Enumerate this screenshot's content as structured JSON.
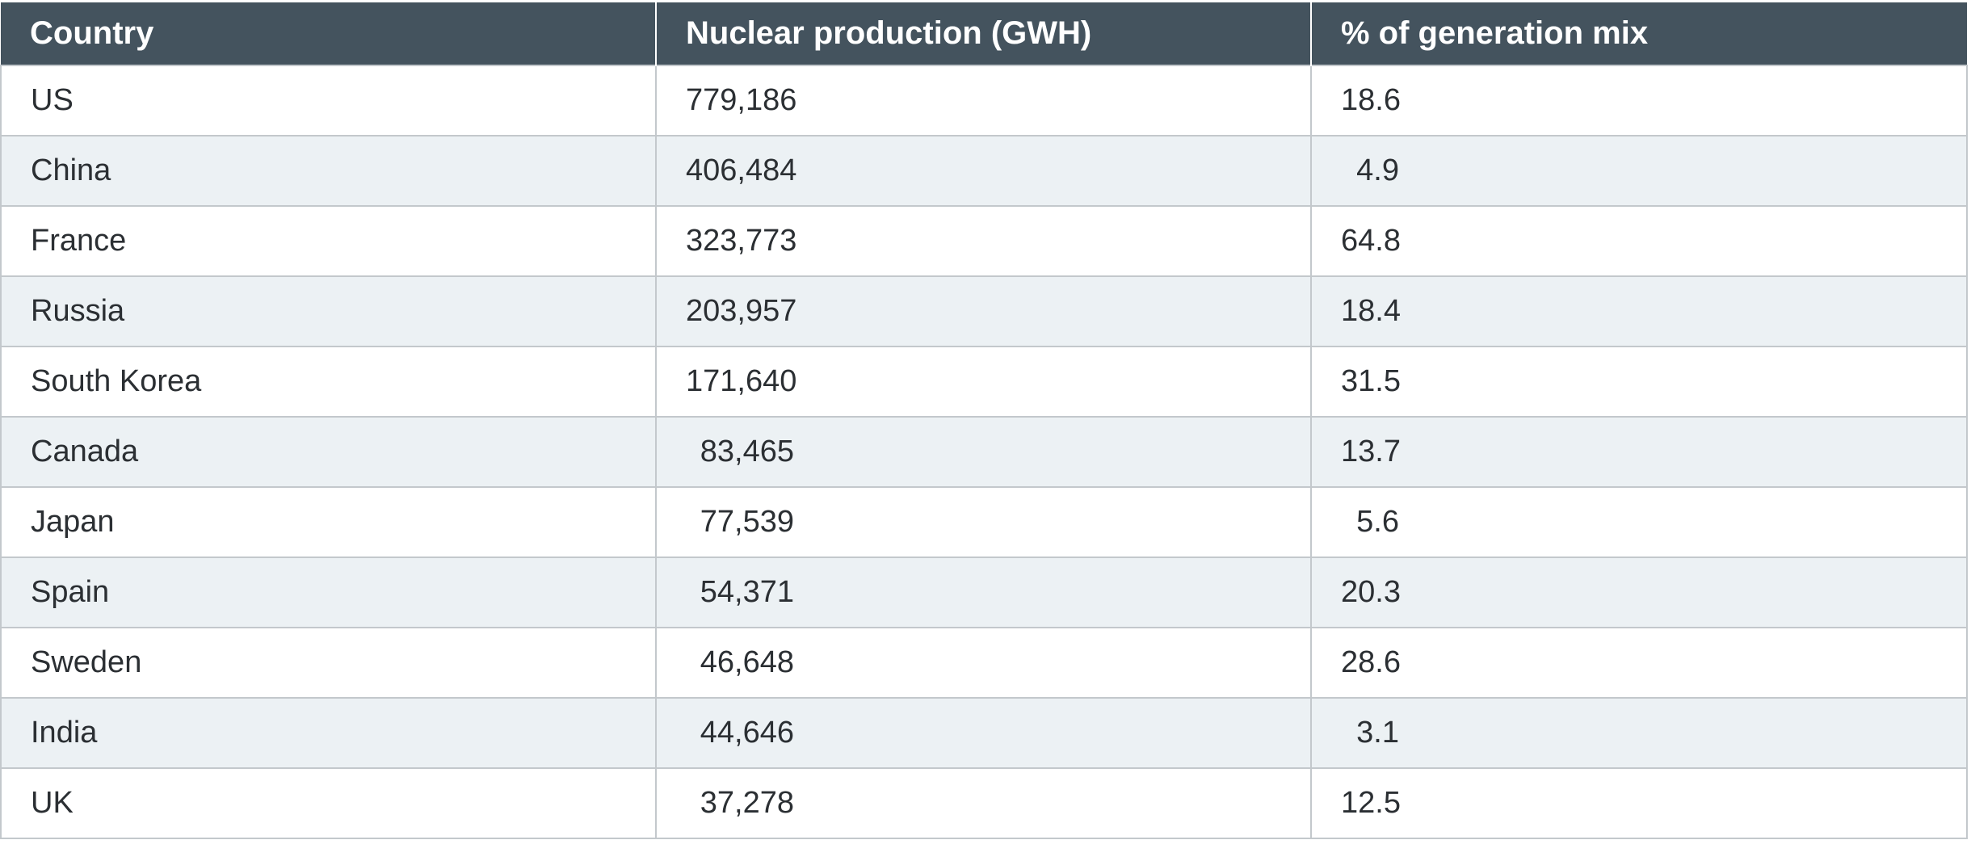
{
  "chart_data": {
    "type": "table",
    "columns": [
      "Country",
      "Nuclear production (GWH)",
      "% of generation mix"
    ],
    "rows": [
      {
        "country": "US",
        "production": "779,186",
        "share": "18.6"
      },
      {
        "country": "China",
        "production": "406,484",
        "share": "4.9"
      },
      {
        "country": "France",
        "production": "323,773",
        "share": "64.8"
      },
      {
        "country": "Russia",
        "production": "203,957",
        "share": "18.4"
      },
      {
        "country": "South Korea",
        "production": "171,640",
        "share": "31.5"
      },
      {
        "country": "Canada",
        "production": "83,465",
        "share": "13.7"
      },
      {
        "country": "Japan",
        "production": "77,539",
        "share": "5.6"
      },
      {
        "country": "Spain",
        "production": "54,371",
        "share": "20.3"
      },
      {
        "country": "Sweden",
        "production": "46,648",
        "share": "28.6"
      },
      {
        "country": "India",
        "production": "44,646",
        "share": "3.1"
      },
      {
        "country": "UK",
        "production": "37,278",
        "share": "12.5"
      }
    ],
    "colors": {
      "header_bg": "#44535e",
      "header_text": "#ffffff",
      "row_alt_bg": "#ecf1f4",
      "row_bg": "#ffffff",
      "border": "#c3c8cc"
    }
  }
}
